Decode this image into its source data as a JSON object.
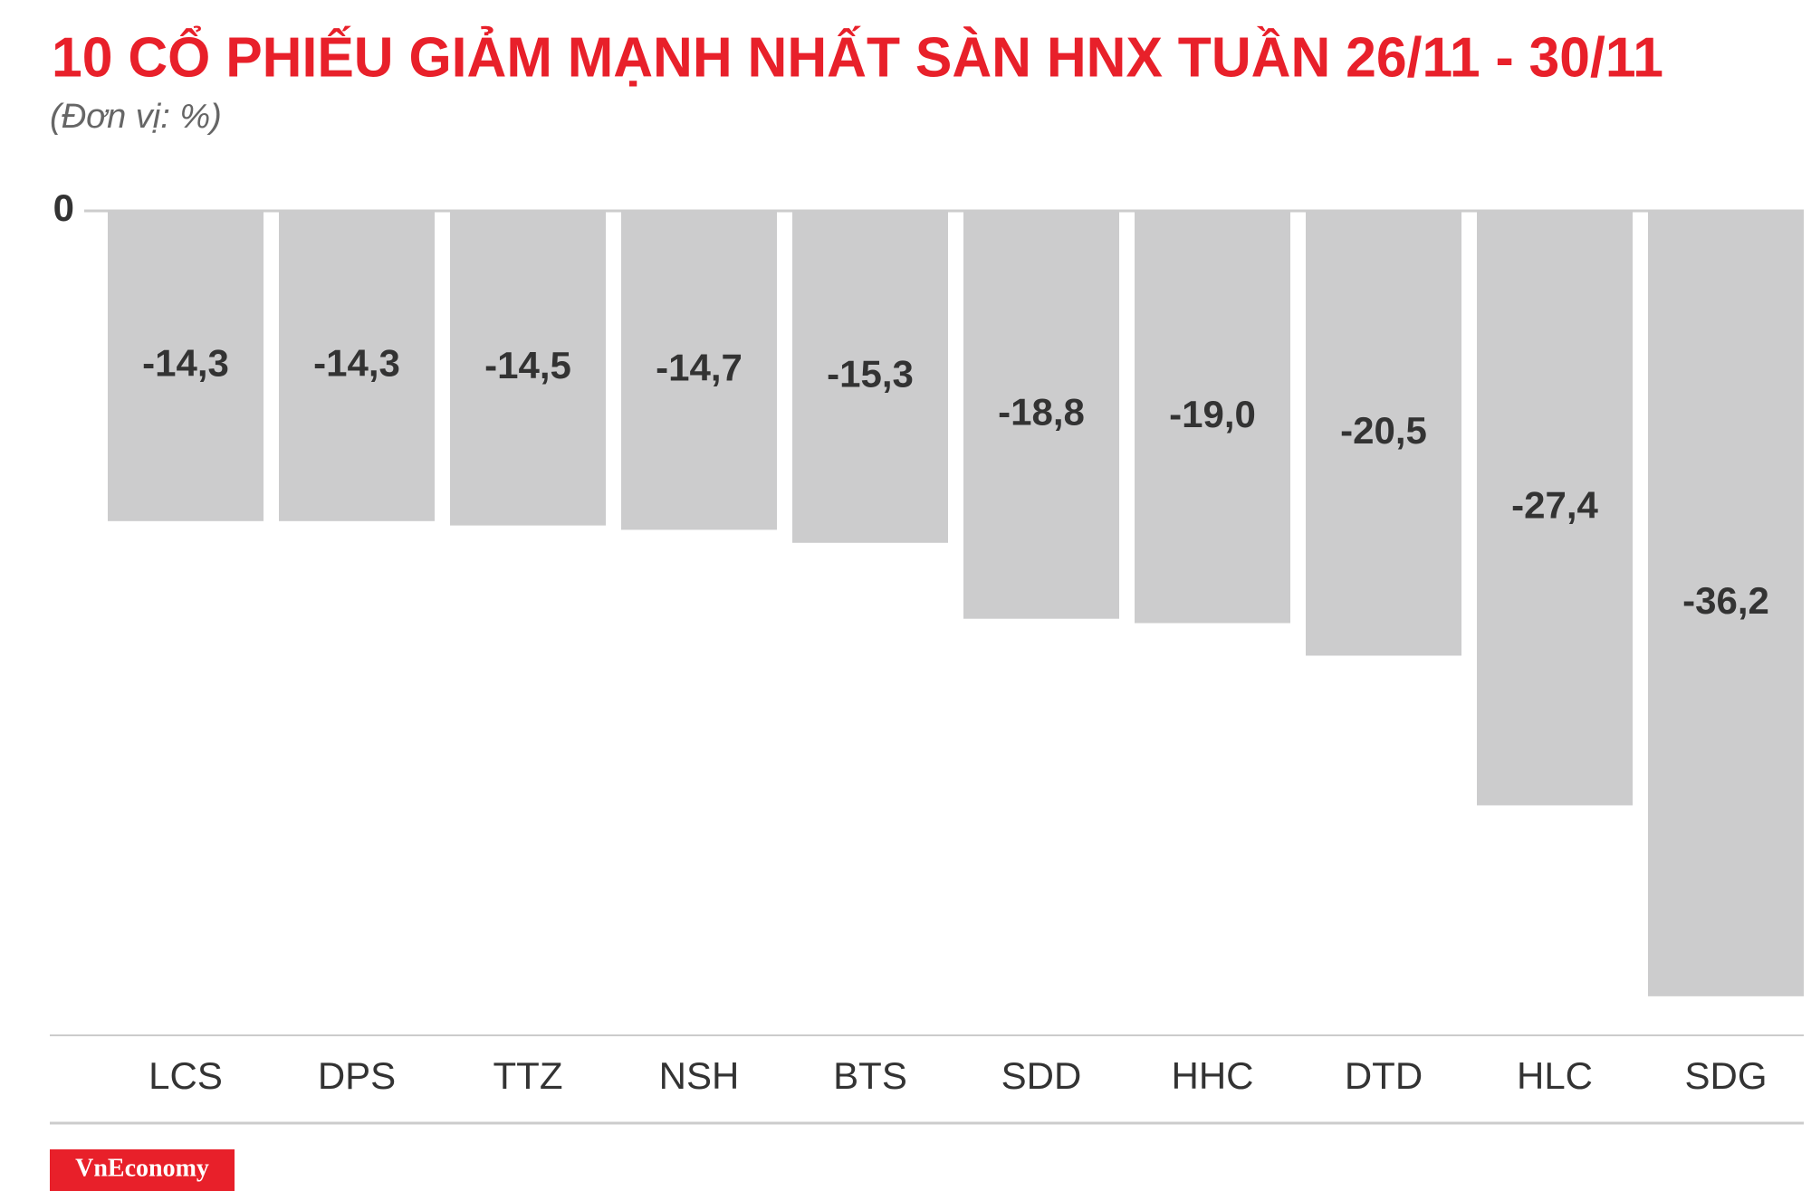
{
  "chart_data": {
    "type": "bar",
    "title": "10 CỔ PHIẾU GIẢM MẠNH NHẤT SÀN HNX TUẦN 26/11 - 30/11",
    "subtitle": "(Đơn vị: %)",
    "categories": [
      "LCS",
      "DPS",
      "TTZ",
      "NSH",
      "BTS",
      "SDD",
      "HHC",
      "DTD",
      "HLC",
      "SDG"
    ],
    "values": [
      -14.3,
      -14.3,
      -14.5,
      -14.7,
      -15.3,
      -18.8,
      -19.0,
      -20.5,
      -27.4,
      -36.2
    ],
    "value_labels": [
      "-14,3",
      "-14,3",
      "-14,5",
      "-14,7",
      "-15,3",
      "-18,8",
      "-19,0",
      "-20,5",
      "-27,4",
      "-36,2"
    ],
    "color": "#cccccd",
    "ylim": [
      -38,
      0
    ],
    "yticks": [
      0
    ],
    "source": "VnEconomy"
  }
}
